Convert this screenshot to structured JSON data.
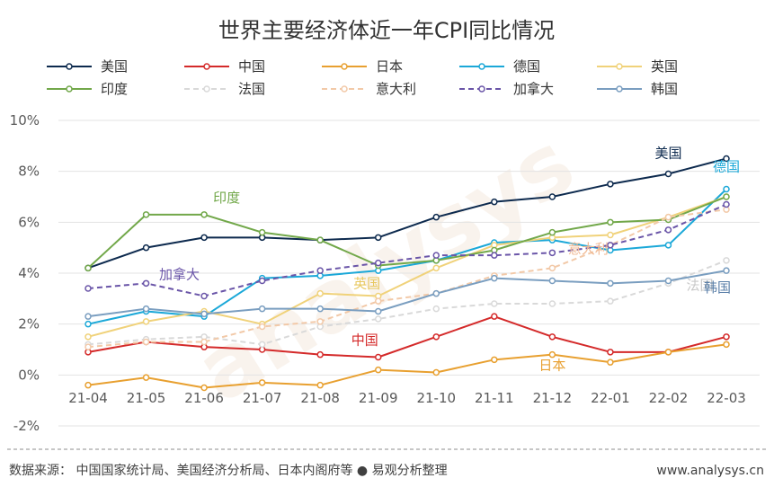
{
  "title": "世界主要经济体近一年CPI同比情况",
  "source_text": "数据来源：  中国国家统计局、美国经济分析局、日本内阁府等 ● 易观分析整理",
  "url_text": "www.analysys.cn",
  "watermark_text": "analysys",
  "chart_data": {
    "type": "line",
    "title": "世界主要经济体近一年CPI同比情况",
    "xlabel": "",
    "ylabel": "",
    "categories": [
      "21-04",
      "21-05",
      "21-06",
      "21-07",
      "21-08",
      "21-09",
      "21-10",
      "21-11",
      "21-12",
      "22-01",
      "22-02",
      "22-03"
    ],
    "ylim": [
      -2,
      10
    ],
    "yticks": [
      -2,
      0,
      2,
      4,
      6,
      8,
      10
    ],
    "ytick_labels": [
      "-2%",
      "0%",
      "2%",
      "4%",
      "6%",
      "8%",
      "10%"
    ],
    "grid": "horizontal",
    "legend_position": "top",
    "series": [
      {
        "name": "美国",
        "color": "#0d2a4e",
        "dashed": false,
        "values": [
          4.2,
          5.0,
          5.4,
          5.4,
          5.3,
          5.4,
          6.2,
          6.8,
          7.0,
          7.5,
          7.9,
          8.5
        ]
      },
      {
        "name": "中国",
        "color": "#d42a2a",
        "dashed": false,
        "values": [
          0.9,
          1.3,
          1.1,
          1.0,
          0.8,
          0.7,
          1.5,
          2.3,
          1.5,
          0.9,
          0.9,
          1.5
        ]
      },
      {
        "name": "日本",
        "color": "#e8a030",
        "dashed": false,
        "values": [
          -0.4,
          -0.1,
          -0.5,
          -0.3,
          -0.4,
          0.2,
          0.1,
          0.6,
          0.8,
          0.5,
          0.9,
          1.2
        ]
      },
      {
        "name": "德国",
        "color": "#1ba8d8",
        "dashed": false,
        "values": [
          2.0,
          2.5,
          2.3,
          3.8,
          3.9,
          4.1,
          4.5,
          5.2,
          5.3,
          4.9,
          5.1,
          7.3
        ]
      },
      {
        "name": "英国",
        "color": "#f0d27a",
        "dashed": false,
        "values": [
          1.5,
          2.1,
          2.5,
          2.0,
          3.2,
          3.1,
          4.2,
          5.1,
          5.4,
          5.5,
          6.2,
          7.0
        ]
      },
      {
        "name": "印度",
        "color": "#72a84a",
        "dashed": false,
        "values": [
          4.2,
          6.3,
          6.3,
          5.6,
          5.3,
          4.3,
          4.5,
          4.9,
          5.6,
          6.0,
          6.1,
          7.0
        ]
      },
      {
        "name": "法国",
        "color": "#d9d9d9",
        "dashed": true,
        "values": [
          1.2,
          1.4,
          1.5,
          1.2,
          1.9,
          2.2,
          2.6,
          2.8,
          2.8,
          2.9,
          3.6,
          4.5
        ]
      },
      {
        "name": "意大利",
        "color": "#f2c9a8",
        "dashed": true,
        "values": [
          1.1,
          1.3,
          1.3,
          1.9,
          2.1,
          2.9,
          3.2,
          3.9,
          4.2,
          5.1,
          6.2,
          6.5
        ]
      },
      {
        "name": "加拿大",
        "color": "#6a55a8",
        "dashed": true,
        "values": [
          3.4,
          3.6,
          3.1,
          3.7,
          4.1,
          4.4,
          4.7,
          4.7,
          4.8,
          5.1,
          5.7,
          6.7
        ]
      },
      {
        "name": "韩国",
        "color": "#7a9ec0",
        "dashed": false,
        "values": [
          2.3,
          2.6,
          2.4,
          2.6,
          2.6,
          2.5,
          3.2,
          3.8,
          3.7,
          3.6,
          3.7,
          4.1
        ]
      }
    ],
    "annotations": [
      {
        "text": "美国",
        "series": "美国",
        "color": "#0d2a4e"
      },
      {
        "text": "德国",
        "series": "德国",
        "color": "#1ba8d8"
      },
      {
        "text": "印度",
        "series": "印度",
        "color": "#72a84a"
      },
      {
        "text": "法国",
        "series": "法国",
        "color": "#c8c8c8"
      },
      {
        "text": "意大利",
        "series": "意大利",
        "color": "#f0b892"
      },
      {
        "text": "韩国",
        "series": "韩国",
        "color": "#5a7fa8"
      },
      {
        "text": "加拿大",
        "series": "加拿大",
        "color": "#6a55a8"
      },
      {
        "text": "英国",
        "series": "英国",
        "color": "#e8c860"
      },
      {
        "text": "中国",
        "series": "中国",
        "color": "#d42a2a"
      },
      {
        "text": "日本",
        "series": "日本",
        "color": "#e8a030"
      }
    ]
  }
}
